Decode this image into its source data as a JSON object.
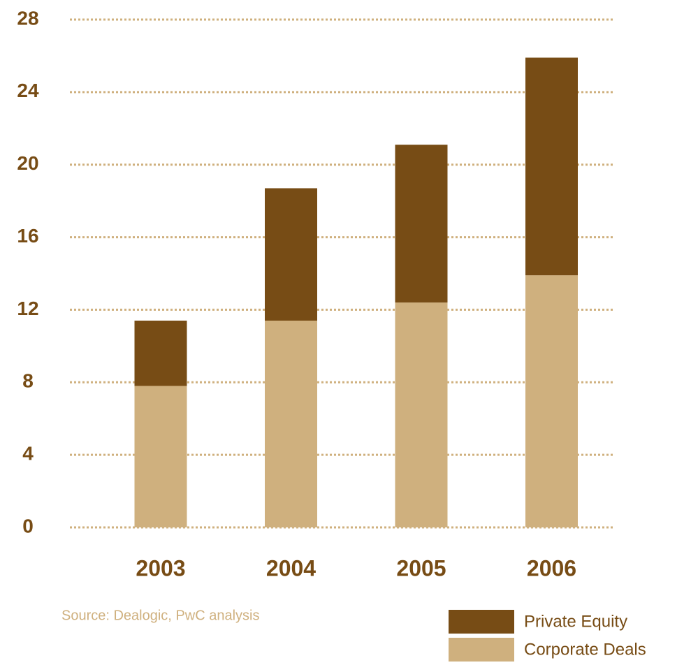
{
  "chart_data": {
    "type": "bar",
    "stacked": true,
    "categories": [
      "2003",
      "2004",
      "2005",
      "2006"
    ],
    "series": [
      {
        "name": "Private Equity",
        "color": "#774c15",
        "values": [
          3.6,
          7.3,
          8.7,
          12.0
        ]
      },
      {
        "name": "Corporate Deals",
        "color": "#cfb07e",
        "values": [
          7.8,
          11.4,
          12.4,
          13.9
        ]
      }
    ],
    "ylim": [
      0,
      28
    ],
    "yticks": [
      0,
      4,
      8,
      12,
      16,
      20,
      24,
      28
    ],
    "grid": true,
    "legend": "bottom-right",
    "source": "Source: Dealogic, PwC analysis"
  }
}
